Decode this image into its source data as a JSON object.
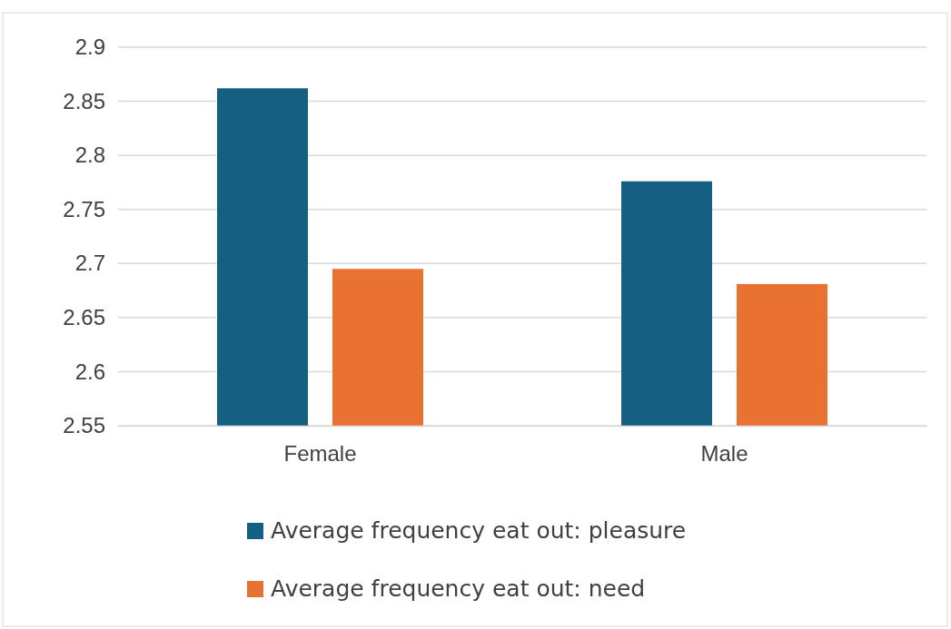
{
  "chart_data": {
    "type": "bar",
    "categories": [
      "Female",
      "Male"
    ],
    "series": [
      {
        "name": "Average frequency eat out: pleasure",
        "color": "#155f82",
        "values": [
          2.862,
          2.776
        ]
      },
      {
        "name": "Average frequency eat out: need",
        "color": "#e97132",
        "values": [
          2.695,
          2.681
        ]
      }
    ],
    "ylim": [
      2.55,
      2.9
    ],
    "yticks": [
      2.55,
      2.6,
      2.65,
      2.7,
      2.75,
      2.8,
      2.85,
      2.9
    ],
    "grid": "y",
    "legend": "bottom"
  }
}
